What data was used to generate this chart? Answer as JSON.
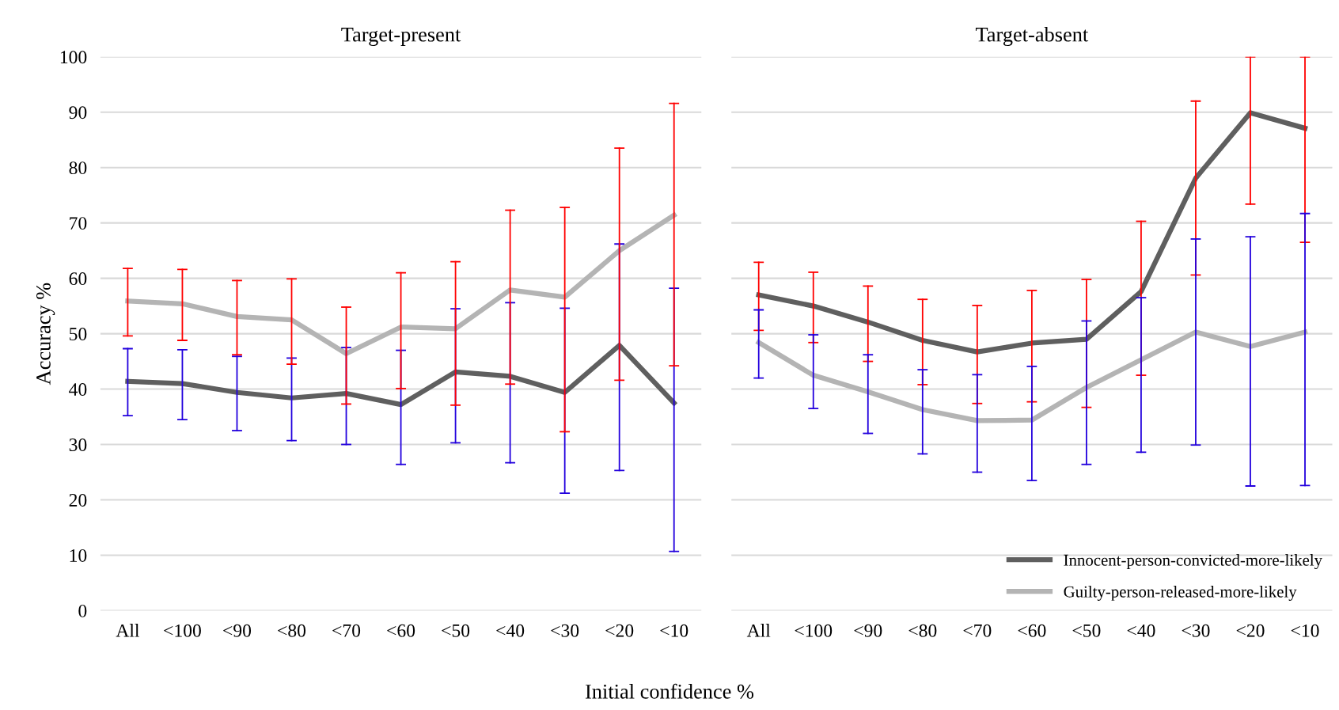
{
  "chart_data": [
    {
      "type": "line",
      "title": "Target-present",
      "xlabel": "Initial confidence %",
      "ylabel": "Accuracy %",
      "categories": [
        "All",
        "<100",
        "<90",
        "<80",
        "<70",
        "<60",
        "<50",
        "<40",
        "<30",
        "<20",
        "<10"
      ],
      "ylim": [
        0,
        100
      ],
      "yticks": [
        0,
        10,
        20,
        30,
        40,
        50,
        60,
        70,
        80,
        90,
        100
      ],
      "grid": "y",
      "series": [
        {
          "color": "#5f5f5f",
          "values": [
            41.4,
            41.0,
            39.4,
            38.4,
            39.2,
            37.2,
            43.1,
            42.3,
            39.4,
            47.9,
            37.5
          ],
          "errors": [
            [
              35.2,
              47.3
            ],
            [
              34.5,
              47.1
            ],
            [
              32.5,
              45.9
            ],
            [
              30.7,
              45.6
            ],
            [
              30.0,
              47.5
            ],
            [
              26.4,
              47.0
            ],
            [
              30.3,
              54.5
            ],
            [
              26.7,
              55.6
            ],
            [
              21.2,
              54.6
            ],
            [
              25.3,
              66.2
            ],
            [
              10.7,
              58.2
            ]
          ]
        },
        {
          "color": "#b4b4b4",
          "values": [
            55.9,
            55.4,
            53.1,
            52.5,
            46.4,
            51.2,
            50.9,
            57.9,
            56.6,
            65.0,
            71.4
          ],
          "errors": [
            [
              49.6,
              61.8
            ],
            [
              48.8,
              61.6
            ],
            [
              46.2,
              59.6
            ],
            [
              44.5,
              59.9
            ],
            [
              37.3,
              54.8
            ],
            [
              40.1,
              61.0
            ],
            [
              37.1,
              63.0
            ],
            [
              40.9,
              72.3
            ],
            [
              32.3,
              72.8
            ],
            [
              41.6,
              83.5
            ],
            [
              44.2,
              91.6
            ]
          ]
        }
      ]
    },
    {
      "type": "line",
      "title": "Target-absent",
      "categories": [
        "All",
        "<100",
        "<90",
        "<80",
        "<70",
        "<60",
        "<50",
        "<40",
        "<30",
        "<20",
        "<10"
      ],
      "ylim": [
        0,
        100
      ],
      "yticks": [
        0,
        10,
        20,
        30,
        40,
        50,
        60,
        70,
        80,
        90,
        100
      ],
      "grid": "y",
      "legend": "bottom right",
      "tick_labels": "x",
      "series": [
        {
          "name": "Innocent-person-convicted-more-likely",
          "color": "#5f5f5f",
          "values": [
            57.0,
            55.0,
            52.1,
            48.8,
            46.7,
            48.3,
            49.0,
            57.6,
            78.1,
            89.9,
            87.1
          ],
          "errors": [
            [
              50.6,
              62.9
            ],
            [
              48.4,
              61.1
            ],
            [
              45.0,
              58.6
            ],
            [
              40.8,
              56.2
            ],
            [
              37.4,
              55.1
            ],
            [
              37.7,
              57.8
            ],
            [
              36.7,
              59.8
            ],
            [
              42.5,
              70.3
            ],
            [
              60.6,
              92.0
            ],
            [
              73.4,
              100
            ],
            [
              66.5,
              100
            ]
          ]
        },
        {
          "name": "Guilty-person-released-more-likely",
          "color": "#b4b4b4",
          "values": [
            48.4,
            42.5,
            39.5,
            36.3,
            34.3,
            34.4,
            40.3,
            45.3,
            50.3,
            47.7,
            50.3
          ],
          "errors": [
            [
              42.0,
              54.3
            ],
            [
              36.5,
              49.8
            ],
            [
              32.0,
              46.2
            ],
            [
              28.3,
              43.5
            ],
            [
              25.0,
              42.6
            ],
            [
              23.5,
              44.1
            ],
            [
              26.4,
              52.3
            ],
            [
              28.6,
              56.5
            ],
            [
              29.9,
              67.1
            ],
            [
              22.5,
              67.5
            ],
            [
              22.6,
              71.7
            ]
          ]
        }
      ]
    }
  ]
}
